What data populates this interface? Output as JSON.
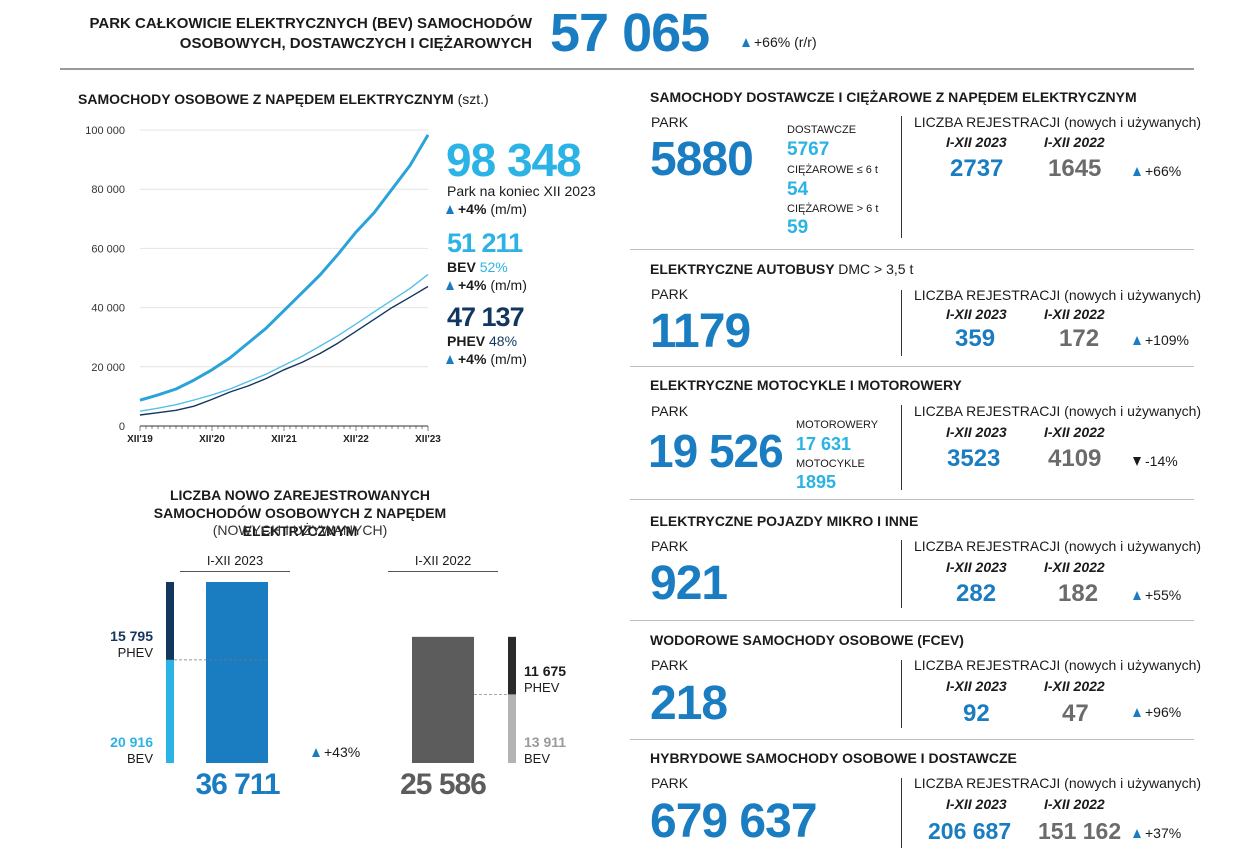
{
  "header": {
    "title_line1": "PARK CAŁKOWICIE ELEKTRYCZNYCH (BEV) SAMOCHODÓW",
    "title_line2": "OSOBOWYCH, DOSTAWCZYCH I CIĘŻAROWYCH",
    "total": "57 065",
    "change": "+66%",
    "change_unit": "(r/r)"
  },
  "passenger": {
    "title": "SAMOCHODY OSOBOWE Z NAPĘDEM ELEKTRYCZNYM",
    "unit": "(szt.)",
    "total": "98 348",
    "total_label": "Park na koniec XII 2023",
    "total_change": "+4%",
    "change_unit": "(m/m)",
    "bev_value": "51 211",
    "bev_label": "BEV",
    "bev_share": "52%",
    "bev_change": "+4%",
    "phev_value": "47 137",
    "phev_label": "PHEV",
    "phev_share": "48%",
    "phev_change": "+4%"
  },
  "chart_data": [
    {
      "type": "line",
      "x_tick_labels": [
        "XII'19",
        "XII'20",
        "XII'21",
        "XII'22",
        "XII'23"
      ],
      "y_tick_labels": [
        "0",
        "20 000",
        "40 000",
        "60 000",
        "80 000",
        "100 000"
      ],
      "ylim": [
        0,
        100000
      ],
      "x": [
        0,
        3,
        6,
        9,
        12,
        15,
        18,
        21,
        24,
        27,
        30,
        33,
        36,
        39,
        42,
        45,
        48
      ],
      "series": [
        {
          "color": "#2aa3d9",
          "values": [
            8700,
            10500,
            12500,
            15500,
            19000,
            23000,
            28000,
            33000,
            39000,
            45000,
            51000,
            58000,
            65500,
            72000,
            80000,
            88000,
            98348
          ]
        },
        {
          "color": "#56c0e8",
          "values": [
            5000,
            6000,
            7200,
            8800,
            10500,
            12500,
            15000,
            17500,
            20500,
            23500,
            27000,
            30500,
            34500,
            38500,
            42500,
            46500,
            51211
          ]
        },
        {
          "color": "#13365e",
          "values": [
            3700,
            4500,
            5300,
            6700,
            9000,
            11500,
            13500,
            16000,
            19000,
            21500,
            24500,
            28000,
            32000,
            36000,
            40000,
            43500,
            47137
          ]
        }
      ]
    },
    {
      "type": "bar",
      "categories": [
        "I-XII 2023",
        "I-XII 2022"
      ],
      "series": [
        {
          "name": "BEV",
          "values": [
            20916,
            13911
          ]
        },
        {
          "name": "PHEV",
          "values": [
            15795,
            11675
          ]
        }
      ],
      "totals": [
        36711,
        25586
      ]
    }
  ],
  "registrations": {
    "title_line1": "LICZBA NOWO ZAREJESTROWANYCH",
    "title_line2": "SAMOCHODÓW OSOBOWYCH Z NAPĘDEM ELEKTRYCZNYM",
    "subtitle": "(NOWYCH I UŻYWANYCH)",
    "y2023_label": "I-XII 2023",
    "y2022_label": "I-XII 2022",
    "phev_2023": "15 795",
    "bev_2023": "20 916",
    "phev_2022": "11 675",
    "bev_2022": "13 911",
    "phev_label": "PHEV",
    "bev_label": "BEV",
    "total_2023": "36 711",
    "total_2022": "25 586",
    "change": "+43%",
    "colors": {
      "bev": "#2cb3e5",
      "phev": "#13365e",
      "bar_2023": "#1a7cc1",
      "bar_2022": "#5c5c5c"
    }
  },
  "panels": {
    "trucks": {
      "title": "SAMOCHODY DOSTAWCZE I CIĘŻAROWE Z NAPĘDEM ELEKTRYCZNYM",
      "park_label": "PARK",
      "park": "5880",
      "sub1_label": "DOSTAWCZE",
      "sub1_value": "5767",
      "sub2_label": "CIĘŻAROWE ≤ 6 t",
      "sub2_value": "54",
      "sub3_label": "CIĘŻAROWE > 6 t",
      "sub3_value": "59",
      "reg_label": "LICZBA REJESTRACJI",
      "reg_sub": "(nowych i używanych)",
      "y1": "I-XII 2023",
      "y2": "I-XII 2022",
      "v1": "2737",
      "v2": "1645",
      "change": "+66%"
    },
    "buses": {
      "title": "ELEKTRYCZNE AUTOBUSY",
      "title_thin": "DMC > 3,5 t",
      "park_label": "PARK",
      "park": "1179",
      "reg_label": "LICZBA REJESTRACJI",
      "reg_sub": "(nowych i używanych)",
      "y1": "I-XII 2023",
      "y2": "I-XII 2022",
      "v1": "359",
      "v2": "172",
      "change": "+109%"
    },
    "motorcycles": {
      "title": "ELEKTRYCZNE MOTOCYKLE I MOTOROWERY",
      "park_label": "PARK",
      "park": "19 526",
      "sub1_label": "MOTOROWERY",
      "sub1_value": "17 631",
      "sub2_label": "MOTOCYKLE",
      "sub2_value": "1895",
      "reg_label": "LICZBA REJESTRACJI",
      "reg_sub": "(nowych i używanych)",
      "y1": "I-XII 2023",
      "y2": "I-XII 2022",
      "v1": "3523",
      "v2": "4109",
      "change": "-14%"
    },
    "micro": {
      "title": "ELEKTRYCZNE POJAZDY MIKRO I INNE",
      "park_label": "PARK",
      "park": "921",
      "reg_label": "LICZBA REJESTRACJI",
      "reg_sub": "(nowych i używanych)",
      "y1": "I-XII 2023",
      "y2": "I-XII 2022",
      "v1": "282",
      "v2": "182",
      "change": "+55%"
    },
    "fcev": {
      "title": "WODOROWE SAMOCHODY OSOBOWE (FCEV)",
      "park_label": "PARK",
      "park": "218",
      "reg_label": "LICZBA REJESTRACJI",
      "reg_sub": "(nowych i używanych)",
      "y1": "I-XII 2023",
      "y2": "I-XII 2022",
      "v1": "92",
      "v2": "47",
      "change": "+96%"
    },
    "hybrid": {
      "title": "HYBRYDOWE SAMOCHODY OSOBOWE I DOSTAWCZE",
      "park_label": "PARK",
      "park": "679 637",
      "reg_label": "LICZBA REJESTRACJI",
      "reg_sub": "(nowych i używanych)",
      "y1": "I-XII 2023",
      "y2": "I-XII 2022",
      "v1": "206 687",
      "v2": "151 162",
      "change": "+37%"
    }
  }
}
